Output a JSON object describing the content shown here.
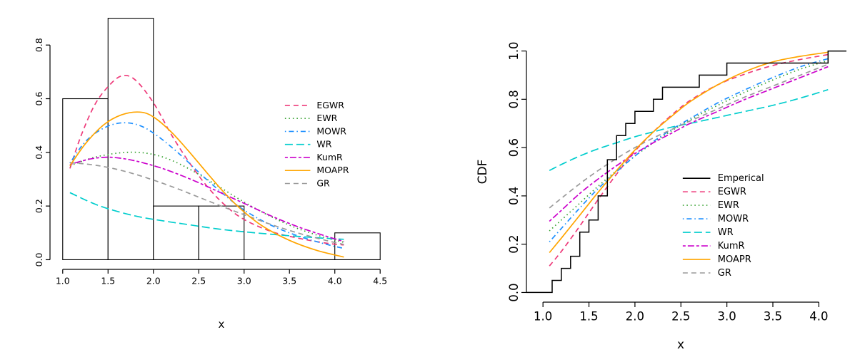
{
  "figure": {
    "background": "#ffffff",
    "panel_count": 2
  },
  "chart_data": [
    {
      "type": "bar",
      "variant": "histogram_with_fitted_density_curves",
      "title": "",
      "xlabel": "x",
      "ylabel": "",
      "xlim": [
        0.86,
        4.64
      ],
      "ylim": [
        -0.036,
        0.936
      ],
      "xtick_values": [
        1.0,
        1.5,
        2.0,
        2.5,
        3.0,
        3.5,
        4.0,
        4.5
      ],
      "xtick_labels": [
        "1.0",
        "1.5",
        "2.0",
        "2.5",
        "3.0",
        "3.5",
        "4.0",
        "4.5"
      ],
      "ytick_values": [
        0.0,
        0.2,
        0.4,
        0.6,
        0.8
      ],
      "ytick_labels": [
        "0.0",
        "0.2",
        "0.4",
        "0.6",
        "0.8"
      ],
      "grid": false,
      "histogram": {
        "bin_edges": [
          1.0,
          1.5,
          2.0,
          2.5,
          3.0,
          3.5,
          4.0,
          4.5
        ],
        "densities": [
          0.6,
          0.9,
          0.2,
          0.2,
          0.0,
          0.0,
          0.1
        ],
        "bar_fill": "#ffffff",
        "bar_stroke": "#000000"
      },
      "series": [
        {
          "name": "EGWR",
          "label": "EGWR",
          "color": "#ee3a7a",
          "dash": "dashed",
          "points": [
            [
              1.08,
              0.34
            ],
            [
              1.2,
              0.46
            ],
            [
              1.35,
              0.575
            ],
            [
              1.5,
              0.645
            ],
            [
              1.65,
              0.685
            ],
            [
              1.8,
              0.67
            ],
            [
              2.0,
              0.585
            ],
            [
              2.2,
              0.465
            ],
            [
              2.4,
              0.36
            ],
            [
              2.6,
              0.27
            ],
            [
              2.8,
              0.2
            ],
            [
              3.0,
              0.15
            ],
            [
              3.3,
              0.105
            ],
            [
              3.6,
              0.08
            ],
            [
              3.9,
              0.062
            ],
            [
              4.1,
              0.055
            ]
          ]
        },
        {
          "name": "EWR",
          "label": "EWR",
          "color": "#33a02c",
          "dash": "dotted",
          "points": [
            [
              1.08,
              0.35
            ],
            [
              1.3,
              0.377
            ],
            [
              1.5,
              0.392
            ],
            [
              1.7,
              0.4
            ],
            [
              1.9,
              0.398
            ],
            [
              2.1,
              0.383
            ],
            [
              2.3,
              0.355
            ],
            [
              2.5,
              0.318
            ],
            [
              2.7,
              0.277
            ],
            [
              3.0,
              0.215
            ],
            [
              3.3,
              0.16
            ],
            [
              3.6,
              0.115
            ],
            [
              3.9,
              0.082
            ],
            [
              4.1,
              0.065
            ]
          ]
        },
        {
          "name": "MOWR",
          "label": "MOWR",
          "color": "#1e90ff",
          "dash": "dotdash",
          "points": [
            [
              1.08,
              0.36
            ],
            [
              1.25,
              0.44
            ],
            [
              1.45,
              0.49
            ],
            [
              1.65,
              0.51
            ],
            [
              1.85,
              0.5
            ],
            [
              2.05,
              0.46
            ],
            [
              2.3,
              0.39
            ],
            [
              2.55,
              0.31
            ],
            [
              2.8,
              0.237
            ],
            [
              3.0,
              0.185
            ],
            [
              3.3,
              0.128
            ],
            [
              3.6,
              0.088
            ],
            [
              3.9,
              0.058
            ],
            [
              4.1,
              0.042
            ]
          ]
        },
        {
          "name": "WR",
          "label": "WR",
          "color": "#00cdcd",
          "dash": "longdash",
          "points": [
            [
              1.08,
              0.25
            ],
            [
              1.3,
              0.215
            ],
            [
              1.5,
              0.19
            ],
            [
              1.8,
              0.163
            ],
            [
              2.1,
              0.145
            ],
            [
              2.4,
              0.13
            ],
            [
              2.7,
              0.115
            ],
            [
              3.0,
              0.104
            ],
            [
              3.4,
              0.092
            ],
            [
              3.8,
              0.082
            ],
            [
              4.1,
              0.076
            ]
          ]
        },
        {
          "name": "KumR",
          "label": "KumR",
          "color": "#cc00cc",
          "dash": "twodash",
          "points": [
            [
              1.08,
              0.355
            ],
            [
              1.3,
              0.375
            ],
            [
              1.5,
              0.382
            ],
            [
              1.7,
              0.375
            ],
            [
              1.9,
              0.36
            ],
            [
              2.1,
              0.34
            ],
            [
              2.3,
              0.315
            ],
            [
              2.5,
              0.287
            ],
            [
              2.7,
              0.256
            ],
            [
              3.0,
              0.21
            ],
            [
              3.3,
              0.163
            ],
            [
              3.6,
              0.122
            ],
            [
              3.9,
              0.088
            ],
            [
              4.1,
              0.068
            ]
          ]
        },
        {
          "name": "GR",
          "label": "GR",
          "color": "#9a9a9a",
          "dash": "dashed",
          "points": [
            [
              1.08,
              0.362
            ],
            [
              1.3,
              0.355
            ],
            [
              1.5,
              0.344
            ],
            [
              1.7,
              0.328
            ],
            [
              1.9,
              0.308
            ],
            [
              2.1,
              0.285
            ],
            [
              2.3,
              0.26
            ],
            [
              2.5,
              0.233
            ],
            [
              2.8,
              0.193
            ],
            [
              3.0,
              0.168
            ],
            [
              3.3,
              0.131
            ],
            [
              3.6,
              0.099
            ],
            [
              3.9,
              0.072
            ],
            [
              4.1,
              0.057
            ]
          ]
        },
        {
          "name": "MOAPR",
          "label": "MOAPR",
          "color": "#ffa500",
          "dash": "solid",
          "points": [
            [
              1.08,
              0.35
            ],
            [
              1.25,
              0.432
            ],
            [
              1.45,
              0.502
            ],
            [
              1.65,
              0.54
            ],
            [
              1.85,
              0.55
            ],
            [
              2.0,
              0.532
            ],
            [
              2.2,
              0.475
            ],
            [
              2.4,
              0.4
            ],
            [
              2.6,
              0.32
            ],
            [
              2.8,
              0.243
            ],
            [
              3.0,
              0.178
            ],
            [
              3.2,
              0.126
            ],
            [
              3.5,
              0.072
            ],
            [
              3.8,
              0.035
            ],
            [
              4.1,
              0.01
            ]
          ]
        }
      ],
      "legend": {
        "position": "right-inside",
        "order": [
          "EGWR",
          "EWR",
          "MOWR",
          "WR",
          "KumR",
          "MOAPR",
          "GR"
        ],
        "x_line": [
          3.45,
          3.73
        ],
        "x_text": 3.8,
        "y_first": 0.575,
        "y_step": 0.0485
      }
    },
    {
      "type": "line",
      "variant": "empirical_cdf_with_fitted_cdfs",
      "title": "",
      "xlabel": "x",
      "ylabel": "CDF",
      "xlim": [
        0.82,
        4.3
      ],
      "ylim": [
        -0.04,
        1.04
      ],
      "xtick_values": [
        1.0,
        1.5,
        2.0,
        2.5,
        3.0,
        3.5,
        4.0
      ],
      "xtick_labels": [
        "1.0",
        "1.5",
        "2.0",
        "2.5",
        "3.0",
        "3.5",
        "4.0"
      ],
      "ytick_values": [
        0.0,
        0.2,
        0.4,
        0.6,
        0.8,
        1.0
      ],
      "ytick_labels": [
        "0.0",
        "0.2",
        "0.4",
        "0.6",
        "0.8",
        "1.0"
      ],
      "grid": false,
      "empirical": {
        "name": "Emperical",
        "label": "Emperical",
        "color": "#000000",
        "steps": [
          [
            1.1,
            0.05
          ],
          [
            1.2,
            0.1
          ],
          [
            1.3,
            0.15
          ],
          [
            1.4,
            0.25
          ],
          [
            1.5,
            0.3
          ],
          [
            1.6,
            0.4
          ],
          [
            1.7,
            0.55
          ],
          [
            1.8,
            0.65
          ],
          [
            1.9,
            0.7
          ],
          [
            2.0,
            0.75
          ],
          [
            2.2,
            0.8
          ],
          [
            2.3,
            0.85
          ],
          [
            2.7,
            0.9
          ],
          [
            3.0,
            0.95
          ],
          [
            4.1,
            1.0
          ]
        ]
      },
      "series": [
        {
          "name": "EGWR",
          "label": "EGWR",
          "color": "#ee3a7a",
          "dash": "dashed",
          "points": [
            [
              1.07,
              0.11
            ],
            [
              1.2,
              0.17
            ],
            [
              1.4,
              0.275
            ],
            [
              1.6,
              0.385
            ],
            [
              1.8,
              0.49
            ],
            [
              2.0,
              0.585
            ],
            [
              2.2,
              0.665
            ],
            [
              2.4,
              0.735
            ],
            [
              2.6,
              0.795
            ],
            [
              2.9,
              0.86
            ],
            [
              3.2,
              0.905
            ],
            [
              3.5,
              0.94
            ],
            [
              3.8,
              0.965
            ],
            [
              4.1,
              0.985
            ]
          ]
        },
        {
          "name": "EWR",
          "label": "EWR",
          "color": "#33a02c",
          "dash": "dotted",
          "points": [
            [
              1.07,
              0.255
            ],
            [
              1.2,
              0.3
            ],
            [
              1.4,
              0.37
            ],
            [
              1.6,
              0.44
            ],
            [
              1.8,
              0.505
            ],
            [
              2.0,
              0.565
            ],
            [
              2.2,
              0.62
            ],
            [
              2.4,
              0.67
            ],
            [
              2.6,
              0.715
            ],
            [
              2.9,
              0.775
            ],
            [
              3.2,
              0.83
            ],
            [
              3.5,
              0.88
            ],
            [
              3.8,
              0.925
            ],
            [
              4.1,
              0.96
            ]
          ]
        },
        {
          "name": "MOWR",
          "label": "MOWR",
          "color": "#1e90ff",
          "dash": "dotdash",
          "points": [
            [
              1.07,
              0.21
            ],
            [
              1.2,
              0.265
            ],
            [
              1.4,
              0.35
            ],
            [
              1.6,
              0.43
            ],
            [
              1.8,
              0.5
            ],
            [
              2.0,
              0.565
            ],
            [
              2.2,
              0.625
            ],
            [
              2.4,
              0.675
            ],
            [
              2.6,
              0.72
            ],
            [
              2.9,
              0.785
            ],
            [
              3.2,
              0.84
            ],
            [
              3.5,
              0.89
            ],
            [
              3.8,
              0.935
            ],
            [
              4.1,
              0.968
            ]
          ]
        },
        {
          "name": "WR",
          "label": "WR",
          "color": "#00cdcd",
          "dash": "longdash",
          "points": [
            [
              1.07,
              0.505
            ],
            [
              1.2,
              0.53
            ],
            [
              1.4,
              0.565
            ],
            [
              1.6,
              0.595
            ],
            [
              1.8,
              0.62
            ],
            [
              2.0,
              0.645
            ],
            [
              2.2,
              0.665
            ],
            [
              2.4,
              0.685
            ],
            [
              2.6,
              0.7
            ],
            [
              2.9,
              0.725
            ],
            [
              3.2,
              0.75
            ],
            [
              3.5,
              0.775
            ],
            [
              3.8,
              0.805
            ],
            [
              4.1,
              0.84
            ]
          ]
        },
        {
          "name": "KumR",
          "label": "KumR",
          "color": "#cc00cc",
          "dash": "twodash",
          "points": [
            [
              1.07,
              0.295
            ],
            [
              1.2,
              0.34
            ],
            [
              1.4,
              0.41
            ],
            [
              1.6,
              0.47
            ],
            [
              1.8,
              0.525
            ],
            [
              2.0,
              0.575
            ],
            [
              2.2,
              0.62
            ],
            [
              2.4,
              0.66
            ],
            [
              2.6,
              0.7
            ],
            [
              2.9,
              0.75
            ],
            [
              3.2,
              0.8
            ],
            [
              3.5,
              0.845
            ],
            [
              3.8,
              0.89
            ],
            [
              4.1,
              0.935
            ]
          ]
        },
        {
          "name": "GR",
          "label": "GR",
          "color": "#9a9a9a",
          "dash": "dashed",
          "points": [
            [
              1.07,
              0.35
            ],
            [
              1.2,
              0.39
            ],
            [
              1.4,
              0.45
            ],
            [
              1.6,
              0.505
            ],
            [
              1.8,
              0.555
            ],
            [
              2.0,
              0.6
            ],
            [
              2.2,
              0.64
            ],
            [
              2.4,
              0.675
            ],
            [
              2.6,
              0.71
            ],
            [
              2.9,
              0.76
            ],
            [
              3.2,
              0.81
            ],
            [
              3.5,
              0.855
            ],
            [
              3.8,
              0.9
            ],
            [
              4.1,
              0.945
            ]
          ]
        },
        {
          "name": "MOAPR",
          "label": "MOAPR",
          "color": "#ffa500",
          "dash": "solid",
          "points": [
            [
              1.07,
              0.165
            ],
            [
              1.2,
              0.225
            ],
            [
              1.4,
              0.32
            ],
            [
              1.6,
              0.415
            ],
            [
              1.8,
              0.505
            ],
            [
              2.0,
              0.59
            ],
            [
              2.2,
              0.665
            ],
            [
              2.4,
              0.73
            ],
            [
              2.6,
              0.79
            ],
            [
              2.9,
              0.86
            ],
            [
              3.2,
              0.915
            ],
            [
              3.5,
              0.955
            ],
            [
              3.8,
              0.978
            ],
            [
              4.1,
              0.995
            ]
          ]
        }
      ],
      "legend": {
        "position": "right-inside-lower",
        "order": [
          "Emperical",
          "EGWR",
          "EWR",
          "MOWR",
          "WR",
          "KumR",
          "MOAPR",
          "GR"
        ],
        "x_line": [
          2.52,
          2.82
        ],
        "x_text": 2.9,
        "y_first": 0.473,
        "y_step": 0.056
      }
    }
  ]
}
